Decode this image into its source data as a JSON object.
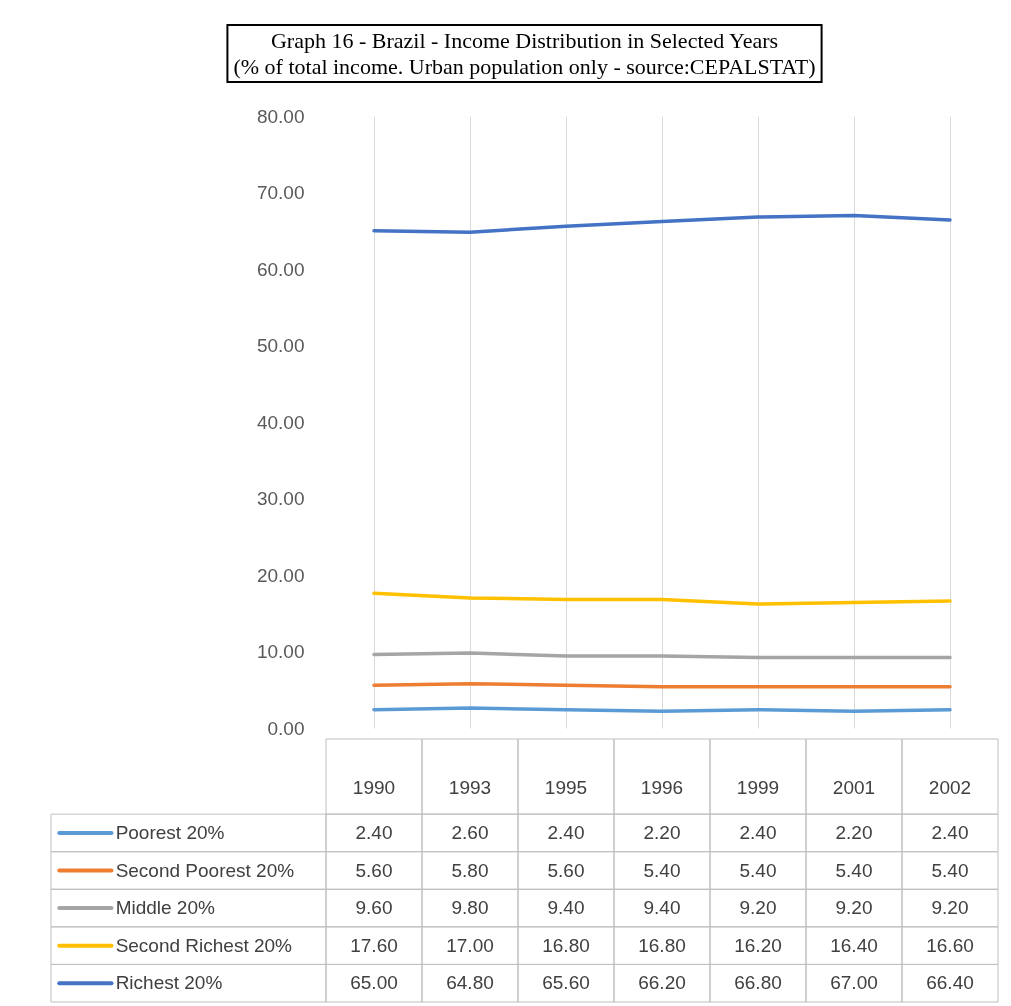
{
  "chart_data": {
    "type": "line",
    "title": "Graph 16 - Brazil - Income Distribution in Selected Years",
    "subtitle": "(% of total income. Urban population only - source:CEPALSTAT)",
    "categories": [
      "1990",
      "1993",
      "1995",
      "1996",
      "1999",
      "2001",
      "2002"
    ],
    "series": [
      {
        "name": "Poorest 20%",
        "color": "#5b9bd5",
        "values": [
          2.4,
          2.6,
          2.4,
          2.2,
          2.4,
          2.2,
          2.4
        ],
        "value_labels": [
          "2.40",
          "2.60",
          "2.40",
          "2.20",
          "2.40",
          "2.20",
          "2.40"
        ]
      },
      {
        "name": "Second Poorest 20%",
        "color": "#ed7d31",
        "values": [
          5.6,
          5.8,
          5.6,
          5.4,
          5.4,
          5.4,
          5.4
        ],
        "value_labels": [
          "5.60",
          "5.80",
          "5.60",
          "5.40",
          "5.40",
          "5.40",
          "5.40"
        ]
      },
      {
        "name": "Middle 20%",
        "color": "#a5a5a5",
        "values": [
          9.6,
          9.8,
          9.4,
          9.4,
          9.2,
          9.2,
          9.2
        ],
        "value_labels": [
          "9.60",
          "9.80",
          "9.40",
          "9.40",
          "9.20",
          "9.20",
          "9.20"
        ]
      },
      {
        "name": "Second Richest 20%",
        "color": "#ffc000",
        "values": [
          17.6,
          17.0,
          16.8,
          16.8,
          16.2,
          16.4,
          16.6
        ],
        "value_labels": [
          "17.60",
          "17.00",
          "16.80",
          "16.80",
          "16.20",
          "16.40",
          "16.60"
        ]
      },
      {
        "name": "Richest 20%",
        "color": "#4472c4",
        "values": [
          65.0,
          64.8,
          65.6,
          66.2,
          66.8,
          67.0,
          66.4
        ],
        "value_labels": [
          "65.00",
          "64.80",
          "65.60",
          "66.20",
          "66.80",
          "67.00",
          "66.40"
        ]
      }
    ],
    "ylim": [
      0,
      80
    ],
    "yticks": [
      {
        "value": 0,
        "label": "0.00"
      },
      {
        "value": 10,
        "label": "10.00"
      },
      {
        "value": 20,
        "label": "20.00"
      },
      {
        "value": 30,
        "label": "30.00"
      },
      {
        "value": 40,
        "label": "40.00"
      },
      {
        "value": 50,
        "label": "50.00"
      },
      {
        "value": 60,
        "label": "60.00"
      },
      {
        "value": 70,
        "label": "70.00"
      },
      {
        "value": 80,
        "label": "80.00"
      }
    ],
    "grid": "x",
    "legend": "bottom"
  }
}
